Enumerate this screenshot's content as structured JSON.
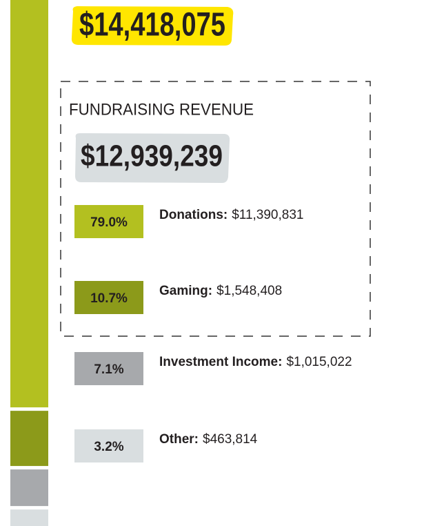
{
  "header": {
    "total": "$14,418,075"
  },
  "fundraising": {
    "label": "FUNDRAISING REVENUE",
    "total": "$12,939,239"
  },
  "chart_data": {
    "type": "stacked-bar",
    "categories": [
      "Donations:",
      "Gaming:",
      "Investment Income:",
      "Other:"
    ],
    "values": [
      79,
      10.7,
      7.1,
      3.2
    ],
    "value_labels": [
      "79.0%",
      "10.7%",
      "7.1%",
      "3.2%"
    ],
    "amounts": [
      "$11,390,831",
      "$1,548,408",
      "$1,015,022",
      "$463,814"
    ],
    "colors": [
      "#b3c020",
      "#8c9a1a",
      "#a7a9ac",
      "#d9dee0"
    ]
  }
}
